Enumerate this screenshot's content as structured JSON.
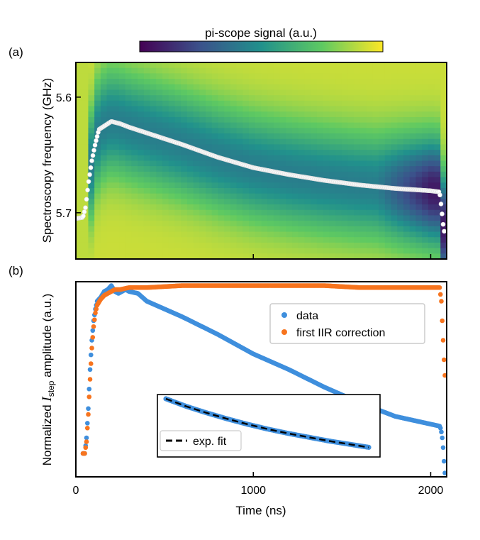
{
  "chart_data": [
    {
      "panel": "(a)",
      "type": "heatmap",
      "colorbar_label": "pi-scope signal (a.u.)",
      "colormap": [
        "#440154",
        "#3b528b",
        "#21918c",
        "#5ec962",
        "#fde725"
      ],
      "ylabel": "Spectroscopy frequency (GHz)",
      "yticks": [
        "5.6",
        "5.7"
      ],
      "yticks_values": [
        5.6,
        5.7
      ],
      "ylim": [
        5.74,
        5.57
      ],
      "xlim": [
        0,
        2090
      ],
      "xticks_values": [
        1000,
        2000
      ],
      "overlay": {
        "name": "fitted resonance",
        "color": "#ffffff",
        "time": [
          0,
          40,
          55,
          70,
          90,
          110,
          130,
          160,
          200,
          250,
          300,
          400,
          600,
          800,
          1000,
          1200,
          1400,
          1600,
          1800,
          2000,
          2050,
          2060,
          2070,
          2080
        ],
        "frequency": [
          5.705,
          5.704,
          5.695,
          5.675,
          5.655,
          5.64,
          5.628,
          5.625,
          5.621,
          5.623,
          5.626,
          5.631,
          5.641,
          5.652,
          5.661,
          5.667,
          5.672,
          5.676,
          5.679,
          5.681,
          5.682,
          5.695,
          5.71,
          5.72
        ]
      }
    },
    {
      "panel": "(b)",
      "type": "scatter",
      "xlabel": "Time (ns)",
      "ylabel_main": "Normalized ",
      "ylabel_italic": "I",
      "ylabel_sub": "step",
      "ylabel_rest": " amplitude (a.u.)",
      "xticks": [
        "0",
        "1000",
        "2000"
      ],
      "xticks_values": [
        0,
        1000,
        2000
      ],
      "xlim": [
        0,
        2090
      ],
      "ylim": [
        0,
        1
      ],
      "series": [
        {
          "name": "data",
          "color": "#3f8fdd",
          "time": [
            40,
            50,
            60,
            70,
            80,
            90,
            100,
            110,
            120,
            140,
            160,
            180,
            200,
            220,
            240,
            260,
            280,
            300,
            350,
            400,
            500,
            600,
            800,
            1000,
            1200,
            1400,
            1600,
            1800,
            2000,
            2050,
            2055,
            2060,
            2065,
            2070,
            2075,
            2080
          ],
          "amplitude": [
            0.12,
            0.12,
            0.2,
            0.35,
            0.55,
            0.7,
            0.8,
            0.86,
            0.9,
            0.92,
            0.95,
            0.96,
            0.98,
            0.95,
            0.94,
            0.95,
            0.96,
            0.95,
            0.94,
            0.9,
            0.86,
            0.82,
            0.73,
            0.63,
            0.55,
            0.46,
            0.38,
            0.31,
            0.27,
            0.26,
            0.25,
            0.23,
            0.2,
            0.15,
            0.08,
            0.02
          ]
        },
        {
          "name": "first IIR correction",
          "color": "#f7741e",
          "time": [
            40,
            50,
            60,
            70,
            80,
            90,
            100,
            110,
            120,
            140,
            160,
            180,
            200,
            220,
            250,
            300,
            400,
            600,
            800,
            1000,
            1200,
            1400,
            1600,
            1800,
            2000,
            2050,
            2060,
            2065,
            2070,
            2075,
            2080
          ],
          "amplitude": [
            0.12,
            0.12,
            0.18,
            0.32,
            0.5,
            0.66,
            0.77,
            0.84,
            0.88,
            0.91,
            0.93,
            0.94,
            0.95,
            0.96,
            0.96,
            0.97,
            0.97,
            0.98,
            0.98,
            0.98,
            0.98,
            0.98,
            0.97,
            0.97,
            0.97,
            0.97,
            0.9,
            0.8,
            0.7,
            0.6,
            0.52
          ]
        }
      ],
      "legend": {
        "placement": "upper right",
        "entries": [
          "data",
          "first IIR correction"
        ]
      },
      "inset": {
        "legend_label": "exp. fit",
        "fit_color": "#000000",
        "data_color": "#3f8fdd",
        "description": "exponential decay section",
        "values": [
          1.0,
          0.86,
          0.74,
          0.63,
          0.53,
          0.44,
          0.36,
          0.29,
          0.22,
          0.16,
          0.1
        ]
      }
    }
  ],
  "panel_labels": {
    "a": "(a)",
    "b": "(b)"
  }
}
